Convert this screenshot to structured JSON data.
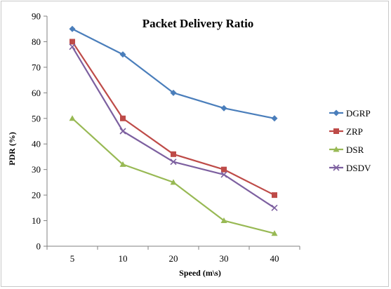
{
  "chart_data": {
    "type": "line",
    "title": "Packet Delivery Ratio",
    "xlabel": "Speed (m\\s)",
    "ylabel": "PDR (%)",
    "categories": [
      "5",
      "10",
      "20",
      "30",
      "40"
    ],
    "ylim": [
      0,
      90
    ],
    "yticks": [
      0,
      10,
      20,
      30,
      40,
      50,
      60,
      70,
      80,
      90
    ],
    "grid": false,
    "legend_position": "right",
    "series": [
      {
        "name": "DGRP",
        "values": [
          85,
          75,
          60,
          54,
          50
        ],
        "color": "#4a7ebb",
        "marker": "diamond"
      },
      {
        "name": "ZRP",
        "values": [
          80,
          50,
          36,
          30,
          20
        ],
        "color": "#be4b48",
        "marker": "square"
      },
      {
        "name": "DSR",
        "values": [
          50,
          32,
          25,
          10,
          5
        ],
        "color": "#98b954",
        "marker": "triangle"
      },
      {
        "name": "DSDV",
        "values": [
          78,
          45,
          33,
          28,
          15
        ],
        "color": "#7d60a0",
        "marker": "x"
      }
    ]
  }
}
